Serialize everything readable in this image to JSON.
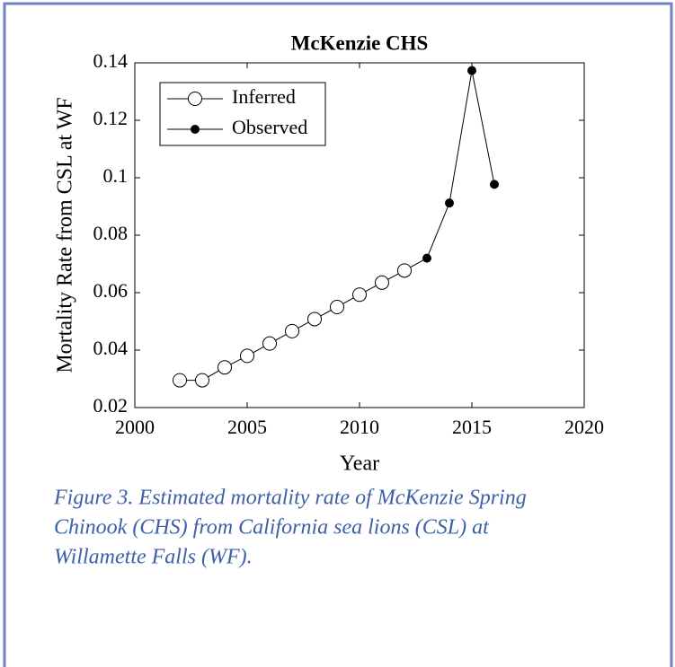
{
  "chart_data": {
    "type": "line",
    "title": "McKenzie CHS",
    "x_label": "Year",
    "y_label": "Mortality Rate from CSL at WF",
    "xlim": [
      2000,
      2020
    ],
    "xticks": [
      2000,
      2005,
      2010,
      2015,
      2020
    ],
    "ylim": [
      0.02,
      0.14
    ],
    "yticks": [
      0.02,
      0.04,
      0.06,
      0.08,
      0.1,
      0.12,
      0.14
    ],
    "legend": "upper left",
    "series": [
      {
        "name": "Inferred",
        "color": "#000000",
        "marker": "open",
        "x": [
          2002,
          2003,
          2004,
          2005,
          2006,
          2007,
          2008,
          2009,
          2010,
          2011,
          2012
        ],
        "values": [
          0.0295,
          0.0295,
          0.034,
          0.038,
          0.0423,
          0.0466,
          0.0508,
          0.055,
          0.0593,
          0.0635,
          0.0677
        ]
      },
      {
        "name": "Observed",
        "color": "#000000",
        "marker": "filled",
        "x": [
          2013,
          2014,
          2015,
          2016
        ],
        "values": [
          0.072,
          0.0912,
          0.1373,
          0.0977
        ]
      }
    ]
  },
  "caption": {
    "lines": [
      "Figure 3.  Estimated mortality rate of McKenzie Spring",
      "Chinook (CHS) from California sea lions (CSL) at",
      "Willamette Falls (WF)."
    ]
  }
}
